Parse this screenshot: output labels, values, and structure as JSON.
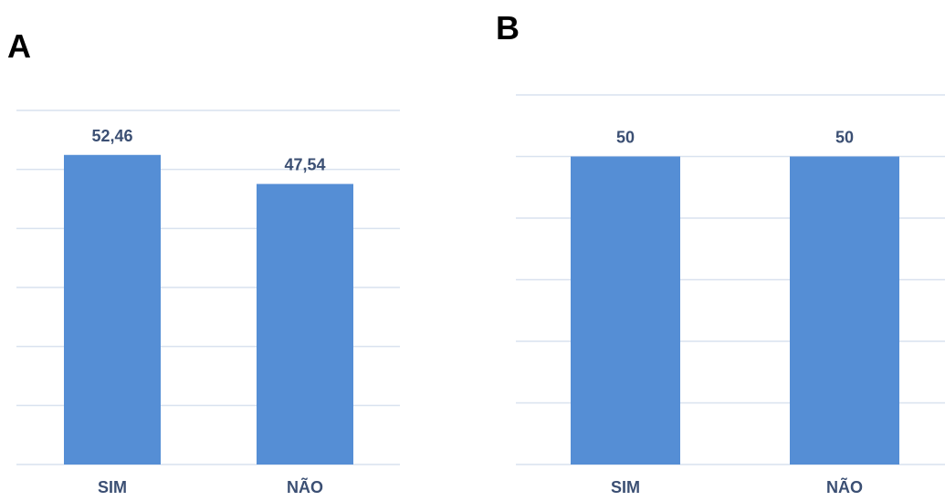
{
  "chart_data": [
    {
      "type": "bar",
      "panel": "A",
      "categories": [
        "SIM",
        "NÃO"
      ],
      "values": [
        52.46,
        47.54
      ],
      "value_labels": [
        "52,46",
        "47,54"
      ],
      "ylim": [
        0,
        60
      ],
      "grid": true,
      "bar_color": "#558ed5",
      "grid_color": "#d9e2ef"
    },
    {
      "type": "bar",
      "panel": "B",
      "categories": [
        "SIM",
        "NÃO"
      ],
      "values": [
        50,
        50
      ],
      "value_labels": [
        "50",
        "50"
      ],
      "ylim": [
        0,
        60
      ],
      "grid": true,
      "bar_color": "#558ed5",
      "grid_color": "#d9e2ef"
    }
  ]
}
